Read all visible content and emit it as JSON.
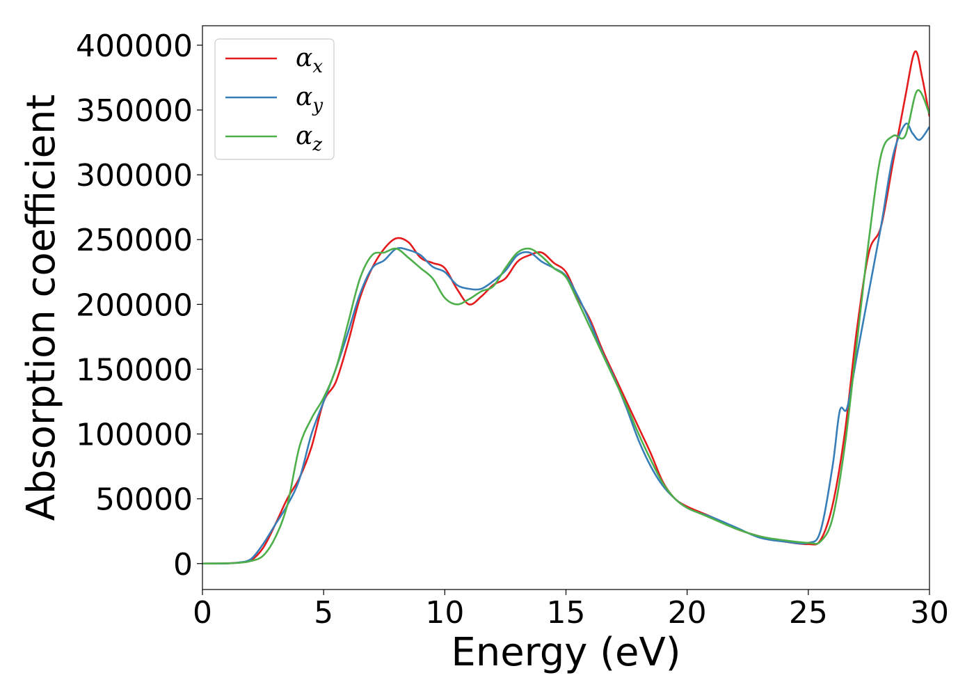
{
  "chart_data": {
    "type": "line",
    "title": "",
    "xlabel": "Energy (eV)",
    "ylabel": "Absorption coefficient",
    "xlim": [
      0,
      30
    ],
    "ylim": [
      -20000,
      415000
    ],
    "xticks": [
      0,
      5,
      10,
      15,
      20,
      25,
      30
    ],
    "xtick_labels": [
      "0",
      "5",
      "10",
      "15",
      "20",
      "25",
      "30"
    ],
    "yticks": [
      0,
      50000,
      100000,
      150000,
      200000,
      250000,
      300000,
      350000,
      400000
    ],
    "ytick_labels": [
      "0",
      "50000",
      "100000",
      "150000",
      "200000",
      "250000",
      "300000",
      "350000",
      "400000"
    ],
    "grid": false,
    "legend": "top-left",
    "series": [
      {
        "name": "α_x",
        "symbol": "α",
        "sub": "x",
        "color": "#e41a1c",
        "points": [
          [
            0,
            0
          ],
          [
            1,
            200
          ],
          [
            1.5,
            800
          ],
          [
            2,
            2500
          ],
          [
            2.5,
            12000
          ],
          [
            3,
            30000
          ],
          [
            3.5,
            50000
          ],
          [
            4,
            66000
          ],
          [
            4.5,
            90000
          ],
          [
            5,
            125000
          ],
          [
            5.5,
            140000
          ],
          [
            6,
            170000
          ],
          [
            6.5,
            205000
          ],
          [
            7,
            228000
          ],
          [
            7.5,
            243000
          ],
          [
            8,
            251000
          ],
          [
            8.5,
            248000
          ],
          [
            9,
            236000
          ],
          [
            9.5,
            232000
          ],
          [
            10,
            228000
          ],
          [
            10.5,
            212000
          ],
          [
            11,
            200000
          ],
          [
            11.5,
            206000
          ],
          [
            12,
            215000
          ],
          [
            12.5,
            220000
          ],
          [
            13,
            233000
          ],
          [
            13.5,
            238000
          ],
          [
            14,
            240000
          ],
          [
            14.5,
            232000
          ],
          [
            15,
            225000
          ],
          [
            15.5,
            205000
          ],
          [
            16,
            188000
          ],
          [
            16.5,
            165000
          ],
          [
            17,
            145000
          ],
          [
            17.5,
            125000
          ],
          [
            18,
            105000
          ],
          [
            18.5,
            85000
          ],
          [
            19,
            63000
          ],
          [
            19.5,
            50000
          ],
          [
            20,
            44000
          ],
          [
            20.5,
            40000
          ],
          [
            21,
            36000
          ],
          [
            22,
            27000
          ],
          [
            23,
            21000
          ],
          [
            24,
            17000
          ],
          [
            25,
            15000
          ],
          [
            25.5,
            18000
          ],
          [
            26,
            45000
          ],
          [
            26.5,
            100000
          ],
          [
            27,
            180000
          ],
          [
            27.5,
            240000
          ],
          [
            28,
            260000
          ],
          [
            28.5,
            310000
          ],
          [
            29,
            360000
          ],
          [
            29.4,
            395000
          ],
          [
            29.7,
            375000
          ],
          [
            30,
            345000
          ]
        ]
      },
      {
        "name": "α_y",
        "symbol": "α",
        "sub": "y",
        "color": "#377eb8",
        "points": [
          [
            0,
            0
          ],
          [
            1,
            200
          ],
          [
            1.5,
            800
          ],
          [
            2,
            3500
          ],
          [
            2.5,
            15000
          ],
          [
            3,
            30000
          ],
          [
            3.5,
            45000
          ],
          [
            4,
            65000
          ],
          [
            4.5,
            100000
          ],
          [
            5,
            125000
          ],
          [
            5.5,
            150000
          ],
          [
            6,
            178000
          ],
          [
            6.5,
            208000
          ],
          [
            7,
            228000
          ],
          [
            7.5,
            234000
          ],
          [
            8,
            243000
          ],
          [
            8.5,
            242000
          ],
          [
            9,
            238000
          ],
          [
            9.5,
            229000
          ],
          [
            10,
            225000
          ],
          [
            10.5,
            215000
          ],
          [
            11,
            212000
          ],
          [
            11.5,
            212000
          ],
          [
            12,
            218000
          ],
          [
            12.5,
            226000
          ],
          [
            13,
            238000
          ],
          [
            13.5,
            240000
          ],
          [
            14,
            233000
          ],
          [
            14.5,
            228000
          ],
          [
            15,
            222000
          ],
          [
            15.5,
            206000
          ],
          [
            16,
            186000
          ],
          [
            16.5,
            163000
          ],
          [
            17,
            143000
          ],
          [
            17.5,
            120000
          ],
          [
            18,
            95000
          ],
          [
            18.5,
            75000
          ],
          [
            19,
            60000
          ],
          [
            19.5,
            50000
          ],
          [
            20,
            43000
          ],
          [
            20.5,
            39000
          ],
          [
            21,
            36000
          ],
          [
            22,
            28000
          ],
          [
            23,
            20000
          ],
          [
            24,
            17000
          ],
          [
            25,
            16000
          ],
          [
            25.5,
            25000
          ],
          [
            26,
            75000
          ],
          [
            26.3,
            118000
          ],
          [
            26.6,
            120000
          ],
          [
            27,
            160000
          ],
          [
            27.5,
            210000
          ],
          [
            28,
            260000
          ],
          [
            28.5,
            315000
          ],
          [
            29,
            339000
          ],
          [
            29.3,
            332000
          ],
          [
            29.6,
            327000
          ],
          [
            30,
            337000
          ]
        ]
      },
      {
        "name": "α_z",
        "symbol": "α",
        "sub": "z",
        "color": "#4daf4a",
        "points": [
          [
            0,
            0
          ],
          [
            1,
            200
          ],
          [
            1.5,
            600
          ],
          [
            2,
            2000
          ],
          [
            2.5,
            6000
          ],
          [
            3,
            20000
          ],
          [
            3.5,
            45000
          ],
          [
            4,
            90000
          ],
          [
            4.5,
            112000
          ],
          [
            5,
            128000
          ],
          [
            5.5,
            150000
          ],
          [
            6,
            185000
          ],
          [
            6.5,
            220000
          ],
          [
            7,
            238000
          ],
          [
            7.5,
            240000
          ],
          [
            8,
            243000
          ],
          [
            8.5,
            236000
          ],
          [
            9,
            228000
          ],
          [
            9.5,
            220000
          ],
          [
            10,
            205000
          ],
          [
            10.5,
            200000
          ],
          [
            11,
            204000
          ],
          [
            11.5,
            210000
          ],
          [
            12,
            214000
          ],
          [
            12.5,
            228000
          ],
          [
            13,
            240000
          ],
          [
            13.5,
            243000
          ],
          [
            14,
            237000
          ],
          [
            14.5,
            228000
          ],
          [
            15,
            221000
          ],
          [
            15.5,
            202000
          ],
          [
            16,
            182000
          ],
          [
            16.5,
            162000
          ],
          [
            17,
            142000
          ],
          [
            17.5,
            122000
          ],
          [
            18,
            100000
          ],
          [
            18.5,
            80000
          ],
          [
            19,
            62000
          ],
          [
            19.5,
            50000
          ],
          [
            20,
            43000
          ],
          [
            20.5,
            39000
          ],
          [
            21,
            35000
          ],
          [
            22,
            27000
          ],
          [
            23,
            21000
          ],
          [
            24,
            18000
          ],
          [
            25,
            16000
          ],
          [
            25.5,
            17000
          ],
          [
            26,
            35000
          ],
          [
            26.5,
            90000
          ],
          [
            27,
            170000
          ],
          [
            27.5,
            250000
          ],
          [
            28,
            315000
          ],
          [
            28.5,
            330000
          ],
          [
            29,
            330000
          ],
          [
            29.5,
            365000
          ],
          [
            30,
            347000
          ]
        ]
      }
    ]
  }
}
